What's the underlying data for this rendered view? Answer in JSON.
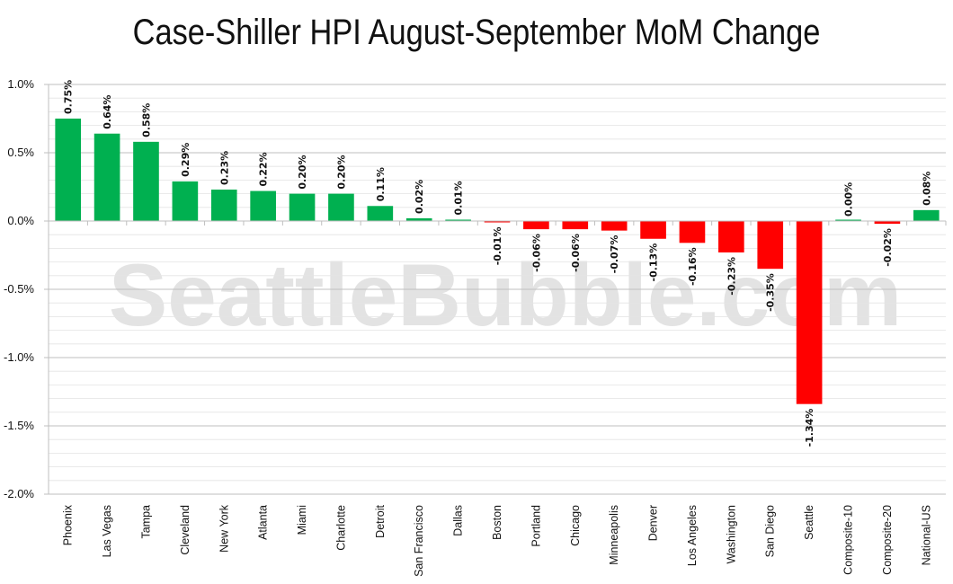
{
  "chart_data": {
    "type": "bar",
    "title": "Case-Shiller HPI August-September MoM Change",
    "watermark": "SeattleBubble.com",
    "categories": [
      "Phoenix",
      "Las Vegas",
      "Tampa",
      "Cleveland",
      "New York",
      "Atlanta",
      "Miami",
      "Charlotte",
      "Detroit",
      "San Francisco",
      "Dallas",
      "Boston",
      "Portland",
      "Chicago",
      "Minneapolis",
      "Denver",
      "Los Angeles",
      "Washington",
      "San Diego",
      "Seattle",
      "Composite-10",
      "Composite-20",
      "National-US"
    ],
    "values": [
      0.75,
      0.64,
      0.58,
      0.29,
      0.23,
      0.22,
      0.2,
      0.2,
      0.11,
      0.02,
      0.01,
      -0.01,
      -0.06,
      -0.06,
      -0.07,
      -0.13,
      -0.16,
      -0.23,
      -0.35,
      -1.34,
      0.0,
      -0.02,
      0.08
    ],
    "data_labels": [
      "0.75%",
      "0.64%",
      "0.58%",
      "0.29%",
      "0.23%",
      "0.22%",
      "0.20%",
      "0.20%",
      "0.11%",
      "0.02%",
      "0.01%",
      "-0.01%",
      "-0.06%",
      "-0.06%",
      "-0.07%",
      "-0.13%",
      "-0.16%",
      "-0.23%",
      "-0.35%",
      "-1.34%",
      "0.00%",
      "-0.02%",
      "0.08%"
    ],
    "ylim": [
      -2.0,
      1.0
    ],
    "yticks": [
      1.0,
      0.5,
      0.0,
      -0.5,
      -1.0,
      -1.5,
      -2.0
    ],
    "ytick_labels": [
      "1.0%",
      "0.5%",
      "0.0%",
      "-0.5%",
      "-1.0%",
      "-1.5%",
      "-2.0%"
    ],
    "xlabel": "",
    "ylabel": "",
    "grid": true,
    "legend": "none",
    "colors": {
      "positive": "#00b050",
      "negative": "#ff0000",
      "grid": "#d9d9d9",
      "axis": "#bfbfbf"
    }
  }
}
